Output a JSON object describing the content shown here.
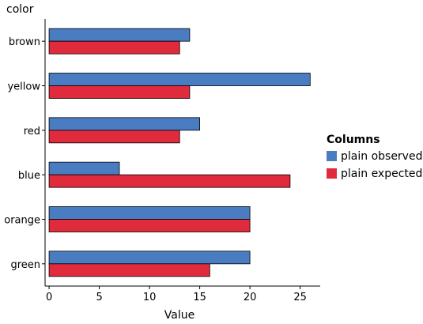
{
  "chart_data": {
    "type": "bar",
    "orientation": "horizontal",
    "ylabel": "color",
    "xlabel": "Value",
    "categories": [
      "brown",
      "yellow",
      "red",
      "blue",
      "orange",
      "green"
    ],
    "series": [
      {
        "name": "plain observed",
        "color": "#4a7cc2",
        "values": [
          14,
          26,
          15,
          7,
          20,
          20
        ]
      },
      {
        "name": "plain expected",
        "color": "#e02b3c",
        "values": [
          13,
          14,
          13,
          24,
          20,
          16
        ]
      }
    ],
    "xlim": [
      -0.4,
      27
    ],
    "xticks": [
      0,
      5,
      10,
      15,
      20,
      25
    ],
    "grid": false,
    "legend": {
      "title": "Columns",
      "placement": "right"
    }
  }
}
